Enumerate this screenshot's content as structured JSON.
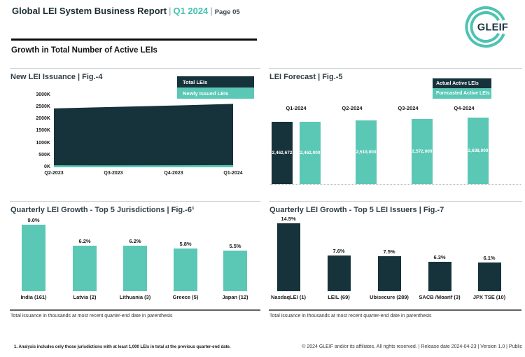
{
  "header": {
    "title": "Global LEI System Business Report",
    "pipe1": "|",
    "period": "Q1 2024",
    "pipe2": "|",
    "page": "Page 05"
  },
  "logo": {
    "text": "GLEIF"
  },
  "section_title": "Growth in Total Number of Active LEIs",
  "colors": {
    "teal": "#5AC8B5",
    "dark": "#16323A",
    "header_teal": "#46C1B1",
    "logo_teal": "#4EC3B1"
  },
  "chart_data": [
    {
      "type": "area",
      "title": "New LEI Issuance | Fig.-4",
      "x": [
        "Q2-2023",
        "Q3-2023",
        "Q4-2023",
        "Q1-2024"
      ],
      "yticks": [
        "0K",
        "500K",
        "1000K",
        "1500K",
        "2000K",
        "2500K",
        "3000K"
      ],
      "ylim_k": [
        0,
        3000
      ],
      "legend_position": "top-right",
      "grid": false,
      "series": [
        {
          "name": "Total LEIs",
          "color": "#16323A",
          "values_k": [
            2450,
            2510,
            2570,
            2640
          ]
        },
        {
          "name": "Newly Issued LEIs",
          "color": "#5AC8B5",
          "values_k": [
            85,
            80,
            85,
            90
          ]
        }
      ]
    },
    {
      "type": "bar",
      "title": "LEI Forecast | Fig.-5",
      "categories": [
        "Q1-2024",
        "Q2-2024",
        "Q3-2024",
        "Q4-2024"
      ],
      "legend_position": "top-right",
      "series": [
        {
          "name": "Actual Active LEIs",
          "color": "#16323A",
          "values": [
            2462672,
            null,
            null,
            null
          ],
          "labels": [
            "2,462,672",
            "",
            "",
            ""
          ]
        },
        {
          "name": "Forecasted Active LEIs",
          "color": "#5AC8B5",
          "values": [
            2462000,
            2519000,
            2572000,
            2638000
          ],
          "labels": [
            "2,462,000",
            "2,519,000",
            "2,572,000",
            "2,638,000"
          ]
        }
      ]
    },
    {
      "type": "bar",
      "title": "Quarterly LEI Growth - Top 5 Jurisdictions | Fig.-6¹",
      "categories": [
        "India (161)",
        "Latvia (2)",
        "Lithuania (3)",
        "Greece (5)",
        "Japan (12)"
      ],
      "values_pct": [
        9.0,
        6.2,
        6.2,
        5.8,
        5.5
      ],
      "labels": [
        "9.0%",
        "6.2%",
        "6.2%",
        "5.8%",
        "5.5%"
      ],
      "bar_color": "#5AC8B5",
      "note": "Total issuance in thousands at most recent quarter-end date in parenthesis"
    },
    {
      "type": "bar",
      "title": "Quarterly LEI Growth - Top 5 LEI Issuers | Fig.-7",
      "categories": [
        "NasdaqLEI (1)",
        "LEIL (69)",
        "Ubisecure (289)",
        "SACB /Moarif (3)",
        "JPX TSE (10)"
      ],
      "values_pct": [
        14.5,
        7.6,
        7.5,
        6.3,
        6.1
      ],
      "labels": [
        "14.5%",
        "7.6%",
        "7.5%",
        "6.3%",
        "6.1%"
      ],
      "bar_color": "#16323A",
      "note": "Total issuance in thousands at most recent quarter-end date in parenthesis"
    }
  ],
  "footnote": "1. Analysis includes only those jurisdictions with at least 1,000 LEIs in total at the previous quarter-end date.",
  "footer": "© 2024 GLEIF and/or its affiliates. All rights reserved. | Release date 2024-04-23 | Version 1.0 | Public"
}
